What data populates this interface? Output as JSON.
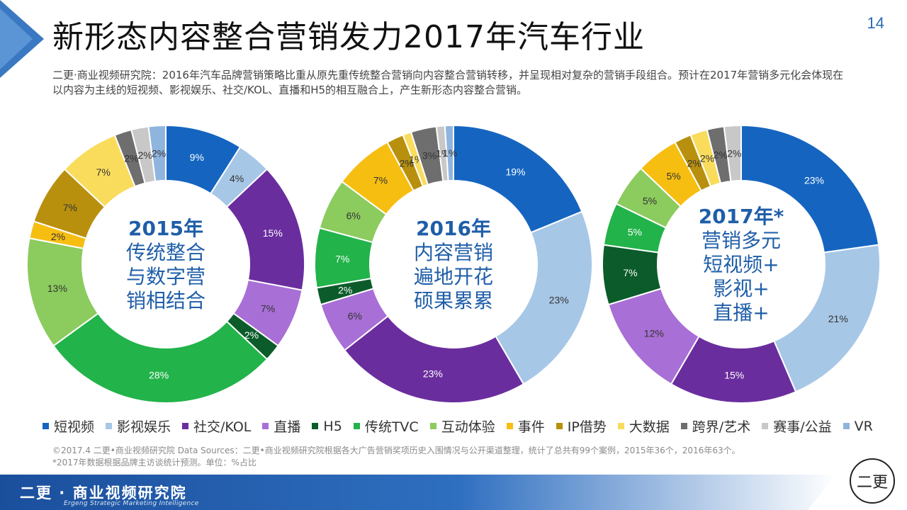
{
  "header": {
    "title": "新形态内容整合营销发力2017年汽车行业",
    "page_number": "14"
  },
  "intro_text": "二更·商业视频研究院：2016年汽车品牌营销策略比重从原先重传统整合营销向内容整合营销转移，并呈现相对复杂的营销手段组合。预计在2017年营销多元化会体现在以内容为主线的短视频、影视娱乐、社交/KOL、直播和H5的相互融合上，产生新形态内容整合营销。",
  "chart_data": {
    "type": "donut",
    "categories": [
      "短视频",
      "影视娱乐",
      "社交/KOL",
      "直播",
      "H5",
      "传统TVC",
      "互动体验",
      "事件",
      "IP借势",
      "大数据",
      "跨界/艺术",
      "赛事/公益",
      "VR"
    ],
    "colors": [
      "#1565c0",
      "#a7c7e7",
      "#6a2d9e",
      "#a86fd6",
      "#0b5c2a",
      "#22b34a",
      "#8ccb5e",
      "#f7be12",
      "#b8900e",
      "#f9dc5c",
      "#6e6e6e",
      "#c8c8c8",
      "#8fb5df"
    ],
    "charts": [
      {
        "name": "2015",
        "center_text": [
          "2015年",
          "传统整合",
          "与数字营",
          "销相结合"
        ],
        "values": [
          9,
          4,
          15,
          7,
          2,
          28,
          13,
          2,
          7,
          7,
          2,
          2,
          2
        ],
        "data_labels": [
          "9%",
          "4%",
          "15%",
          "7%",
          "2%",
          "28%",
          "13%",
          "2%",
          "7%",
          "7%",
          "2%",
          "2%",
          "2%"
        ]
      },
      {
        "name": "2016",
        "center_text": [
          "2016年",
          "内容营销",
          "遍地开花",
          "硕果累累"
        ],
        "values": [
          19,
          23,
          23,
          6,
          2,
          7,
          6,
          7,
          2,
          1,
          3,
          1,
          1
        ],
        "data_labels": [
          "19%",
          "23%",
          "23%",
          "6%",
          "2%",
          "7%",
          "6%",
          "7%",
          "2%",
          "1%",
          "3%",
          "1%",
          "1%"
        ]
      },
      {
        "name": "2017",
        "center_text": [
          "2017年*",
          "营销多元",
          "短视频+",
          "影视+",
          "直播+"
        ],
        "values": [
          23,
          21,
          15,
          12,
          7,
          5,
          5,
          5,
          2,
          2,
          2,
          2,
          0
        ],
        "data_labels": [
          "23%",
          "21%",
          "15%",
          "12%",
          "7%",
          "5%",
          "5%",
          "5%",
          "2%",
          "2%",
          "2%",
          "2%",
          ""
        ]
      }
    ]
  },
  "footnote": {
    "line1": "©2017.4 二更•商业视频研究院    Data Sources：二更•商业视频研究院根据各大广告营销奖项历史入围情况与公开渠道整理，统计了总共有99个案例，2015年36个，2016年63个。",
    "line2": "*2017年数据根据品牌主访谈统计预测。单位：%占比"
  },
  "footer": {
    "org_name": "二更 · 商业视频研究院",
    "english_name": "Ergeng Strategic Marketing Intelligence",
    "logo_text": "二更"
  }
}
